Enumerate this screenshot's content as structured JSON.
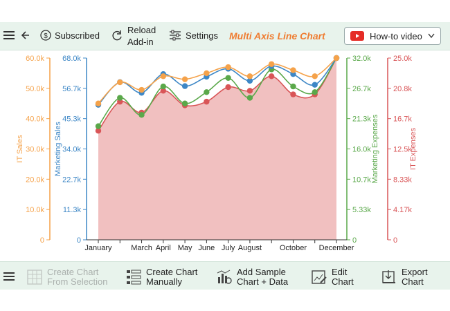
{
  "toolbar": {
    "subscribed_label": "Subscribed",
    "reload_line1": "Reload",
    "reload_line2": "Add-in",
    "settings_label": "Settings",
    "chart_title": "Multi Axis Line Chart",
    "howto_label": "How-to video"
  },
  "bottom_toolbar": {
    "create_from_selection_line1": "Create Chart",
    "create_from_selection_line2": "From Selection",
    "create_manually_line1": "Create Chart",
    "create_manually_line2": "Manually",
    "add_sample_line1": "Add Sample",
    "add_sample_line2": "Chart + Data",
    "edit_line1": "Edit",
    "edit_line2": "Chart",
    "export_line1": "Export",
    "export_line2": "Chart"
  },
  "colors": {
    "it_sales": "#f5a24a",
    "marketing_sales": "#3d87c6",
    "marketing_expenses": "#5aa84a",
    "it_expenses": "#d95557",
    "area_fill": "#f1c0c0",
    "accent": "#ef7d32"
  },
  "chart_data": {
    "type": "line",
    "x_labels": [
      "January",
      "",
      "March",
      "April",
      "May",
      "June",
      "July",
      "August",
      "",
      "October",
      "",
      "December"
    ],
    "x_positions": [
      1,
      2,
      3,
      4,
      5,
      6,
      7,
      8,
      9,
      10,
      11,
      12
    ],
    "axes": [
      {
        "id": "it_sales",
        "label": "IT Sales",
        "ticks": [
          "60.0k",
          "50.0k",
          "40.0k",
          "30.0k",
          "20.0k",
          "10.0k",
          "0"
        ],
        "ylim": [
          0,
          60000
        ],
        "side": "left"
      },
      {
        "id": "marketing_sales",
        "label": "Marketing Sales",
        "ticks": [
          "68.0k",
          "56.7k",
          "45.3k",
          "34.0k",
          "22.7k",
          "11.3k",
          "0"
        ],
        "ylim": [
          0,
          68000
        ],
        "side": "left"
      },
      {
        "id": "marketing_expenses",
        "label": "Marketing Expenses",
        "ticks": [
          "32.0k",
          "26.7k",
          "21.3k",
          "16.0k",
          "10.7k",
          "5.33k",
          "0"
        ],
        "ylim": [
          0,
          32000
        ],
        "side": "right"
      },
      {
        "id": "it_expenses",
        "label": "IT Expenses",
        "ticks": [
          "25.0k",
          "20.8k",
          "16.7k",
          "12.5k",
          "8.33k",
          "4.17k",
          "0"
        ],
        "ylim": [
          0,
          25000
        ],
        "side": "right"
      }
    ],
    "series": [
      {
        "name": "IT Sales",
        "axis": "it_sales",
        "values": [
          45000,
          52000,
          49500,
          54000,
          53000,
          55000,
          57000,
          54000,
          58000,
          56000,
          54000,
          60000
        ]
      },
      {
        "name": "Marketing Sales",
        "axis": "marketing_sales",
        "values": [
          50500,
          59000,
          55000,
          62000,
          57500,
          61000,
          64000,
          59500,
          65000,
          62000,
          58000,
          68000
        ]
      },
      {
        "name": "Marketing Expenses",
        "axis": "marketing_expenses",
        "values": [
          20000,
          25000,
          22000,
          27000,
          24000,
          26000,
          28500,
          25000,
          30000,
          27000,
          26000,
          32000
        ]
      },
      {
        "name": "IT Expenses",
        "axis": "it_expenses",
        "values": [
          15000,
          19000,
          17500,
          20500,
          18500,
          19000,
          21000,
          20500,
          22500,
          20000,
          20000,
          25000
        ]
      }
    ],
    "area_series": "IT Expenses",
    "grid": false,
    "legend": "none"
  }
}
